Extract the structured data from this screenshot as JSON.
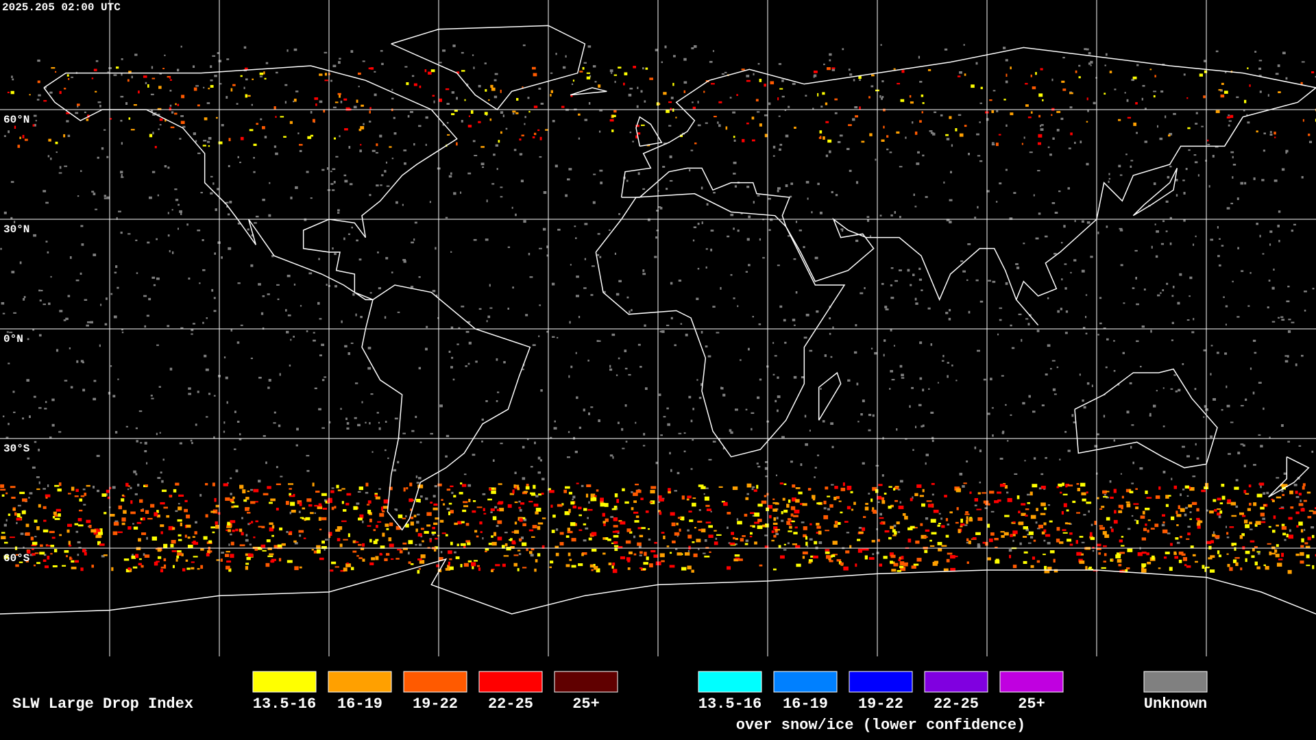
{
  "header": {
    "timestamp": "2025.205 02:00 UTC"
  },
  "map": {
    "latitude_labels": [
      "60°N",
      "30°N",
      "0°N",
      "30°S",
      "60°S"
    ]
  },
  "legend": {
    "title": "SLW Large Drop Index",
    "groups": [
      {
        "items": [
          {
            "label": "13.5-16",
            "color": "#ffff00"
          },
          {
            "label": "16-19",
            "color": "#ffa000"
          },
          {
            "label": "19-22",
            "color": "#ff5a00"
          },
          {
            "label": "22-25",
            "color": "#ff0000"
          },
          {
            "label": "25+",
            "color": "#600000"
          }
        ]
      },
      {
        "items": [
          {
            "label": "13.5-16",
            "color": "#00ffff"
          },
          {
            "label": "16-19",
            "color": "#0080ff"
          },
          {
            "label": "19-22",
            "color": "#0000ff"
          },
          {
            "label": "22-25",
            "color": "#8000e0"
          },
          {
            "label": "25+",
            "color": "#c000e0"
          }
        ],
        "caption": "over snow/ice (lower confidence)"
      },
      {
        "items": [
          {
            "label": "Unknown",
            "color": "#808080"
          }
        ]
      }
    ]
  }
}
